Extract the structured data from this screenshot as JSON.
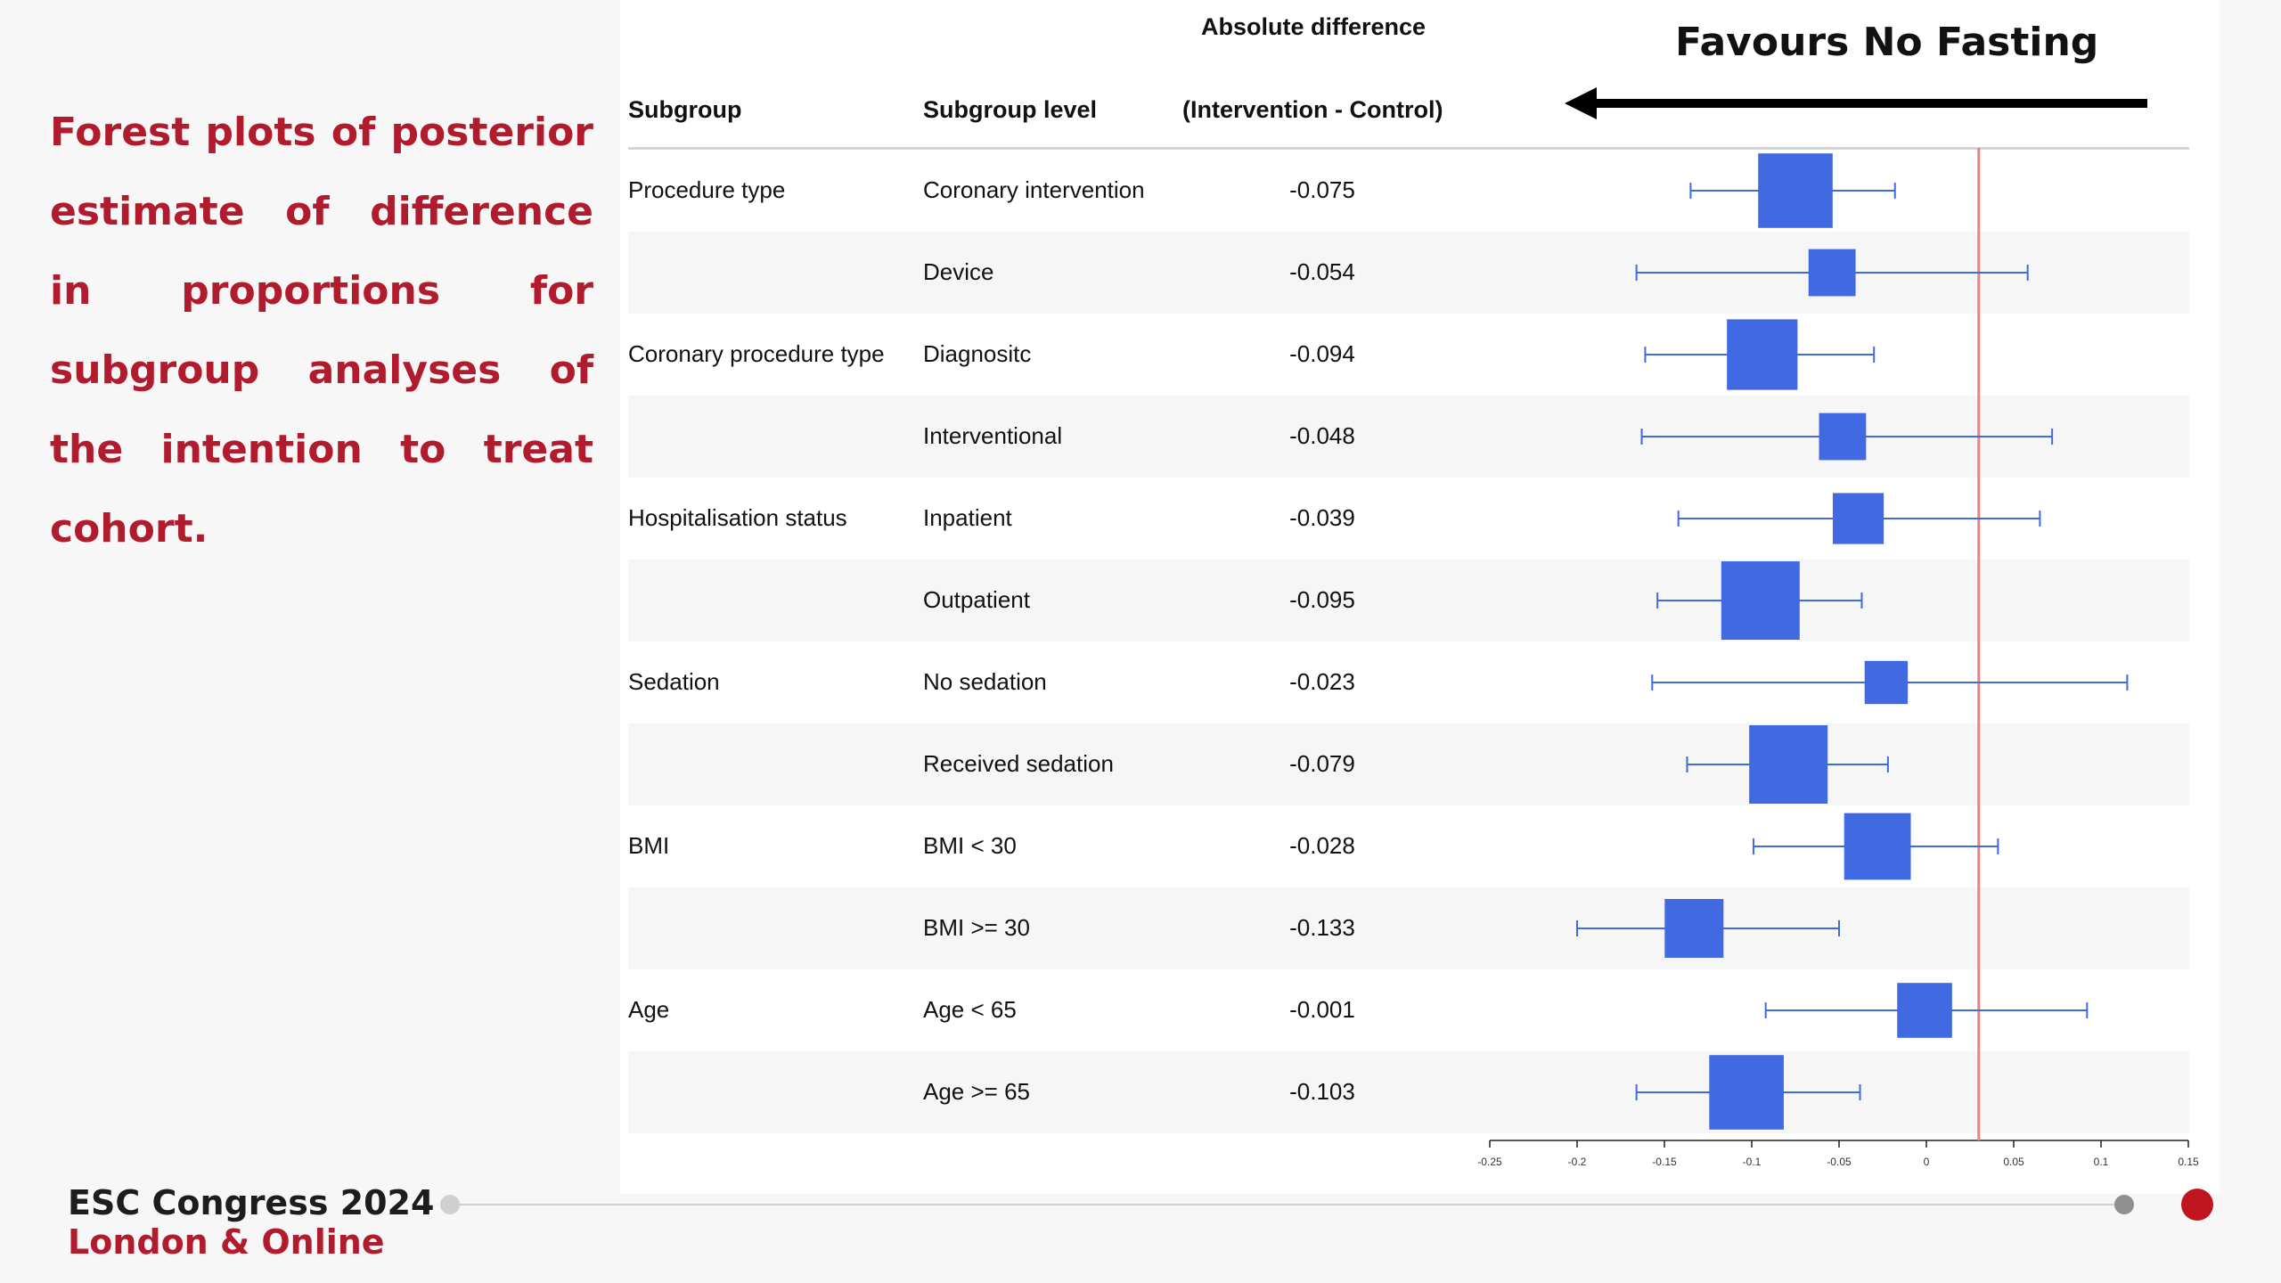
{
  "slide": {
    "description": "Forest plots of posterior estimate of difference in proportions for subgroup analyses of the intention to treat cohort.",
    "favours_label": "Favours No Fasting"
  },
  "footer": {
    "brand_line1": "ESC Congress 2024",
    "brand_line2": "London & Online"
  },
  "table": {
    "header_subgroup": "Subgroup",
    "header_level": "Subgroup level",
    "header_diff_line1": "Absolute difference",
    "header_diff_line2": "(Intervention - Control)",
    "rows": [
      {
        "subgroup": "Procedure type",
        "level": "Coronary intervention",
        "diff": "-0.075"
      },
      {
        "subgroup": "",
        "level": "Device",
        "diff": "-0.054"
      },
      {
        "subgroup": "Coronary procedure type",
        "level": "Diagnositc",
        "diff": "-0.094"
      },
      {
        "subgroup": "",
        "level": "Interventional",
        "diff": "-0.048"
      },
      {
        "subgroup": "Hospitalisation status",
        "level": "Inpatient",
        "diff": "-0.039"
      },
      {
        "subgroup": "",
        "level": "Outpatient",
        "diff": "-0.095"
      },
      {
        "subgroup": "Sedation",
        "level": "No sedation",
        "diff": "-0.023"
      },
      {
        "subgroup": "",
        "level": "Received sedation",
        "diff": "-0.079"
      },
      {
        "subgroup": "BMI",
        "level": "BMI < 30",
        "diff": "-0.028"
      },
      {
        "subgroup": "",
        "level": "BMI >= 30",
        "diff": "-0.133"
      },
      {
        "subgroup": "Age",
        "level": "Age < 65",
        "diff": "-0.001"
      },
      {
        "subgroup": "",
        "level": "Age >= 65",
        "diff": "-0.103"
      }
    ]
  },
  "chart_data": {
    "type": "forest",
    "title": "",
    "xlabel": "",
    "xlim": [
      -0.25,
      0.15
    ],
    "xticks": [
      -0.25,
      -0.2,
      -0.15,
      -0.1,
      -0.05,
      0,
      0.05,
      0.1,
      0.15
    ],
    "xtick_labels": [
      "-0.25",
      "-0.2",
      "-0.15",
      "-0.1",
      "-0.05",
      "0",
      "0.05",
      "0.1",
      "0.15"
    ],
    "reference_line": 0.03,
    "reference_color": "#f07f7f",
    "marker_color": "#4169e1",
    "categories": [
      "Coronary intervention",
      "Device",
      "Diagnositc",
      "Interventional",
      "Inpatient",
      "Outpatient",
      "No sedation",
      "Received sedation",
      "BMI < 30",
      "BMI >= 30",
      "Age < 65",
      "Age >= 65"
    ],
    "estimates": [
      -0.075,
      -0.054,
      -0.094,
      -0.048,
      -0.039,
      -0.095,
      -0.023,
      -0.079,
      -0.028,
      -0.133,
      -0.001,
      -0.103
    ],
    "lower": [
      -0.135,
      -0.166,
      -0.161,
      -0.163,
      -0.142,
      -0.154,
      -0.157,
      -0.137,
      -0.099,
      -0.2,
      -0.092,
      -0.166
    ],
    "upper": [
      -0.018,
      0.058,
      -0.03,
      0.072,
      0.065,
      -0.037,
      0.115,
      -0.022,
      0.041,
      -0.05,
      0.092,
      -0.038
    ],
    "box_weight": [
      0.95,
      0.6,
      0.9,
      0.6,
      0.65,
      1.0,
      0.55,
      1.0,
      0.85,
      0.75,
      0.7,
      0.95
    ]
  }
}
